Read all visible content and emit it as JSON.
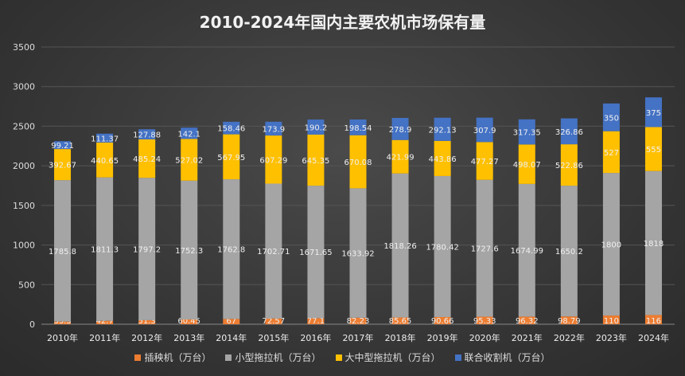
{
  "chart_data": {
    "type": "bar",
    "stacked": true,
    "title": "2010-2024年国内主要农机市场保有量",
    "categories": [
      "2010年",
      "2011年",
      "2012年",
      "2013年",
      "2014年",
      "2015年",
      "2016年",
      "2017年",
      "2018年",
      "2019年",
      "2020年",
      "2021年",
      "2022年",
      "2023年",
      "2024年"
    ],
    "series": [
      {
        "name": "插秧机（万台）",
        "color": "#ed7d31",
        "values": [
          33.3,
          42.7,
          51.3,
          60.45,
          67,
          72.57,
          77.1,
          82.23,
          85.65,
          90.66,
          95.33,
          96.32,
          98.79,
          110,
          116
        ]
      },
      {
        "name": "小型拖拉机（万台）",
        "color": "#a5a5a5",
        "values": [
          1785.8,
          1811.3,
          1797.2,
          1752.3,
          1762.8,
          1702.71,
          1671.65,
          1633.92,
          1818.26,
          1780.42,
          1727.6,
          1674.99,
          1650.2,
          1800,
          1818
        ]
      },
      {
        "name": "大中型拖拉机（万台）",
        "color": "#ffc000",
        "values": [
          392.67,
          440.65,
          485.24,
          527.02,
          567.95,
          607.29,
          645.35,
          670.08,
          421.99,
          443.86,
          477.27,
          498.07,
          522.86,
          527,
          555
        ]
      },
      {
        "name": "联合收割机（万台）",
        "color": "#4472c4",
        "values": [
          99.21,
          111.37,
          127.88,
          142.1,
          158.46,
          173.9,
          190.2,
          198.54,
          278.9,
          292.13,
          307.9,
          317.35,
          326.86,
          350,
          375
        ]
      }
    ],
    "yticks": [
      0,
      500,
      1000,
      1500,
      2000,
      2500,
      3000,
      3500
    ],
    "ylim": [
      0,
      3500
    ],
    "grid": true,
    "legend": "bottom"
  }
}
